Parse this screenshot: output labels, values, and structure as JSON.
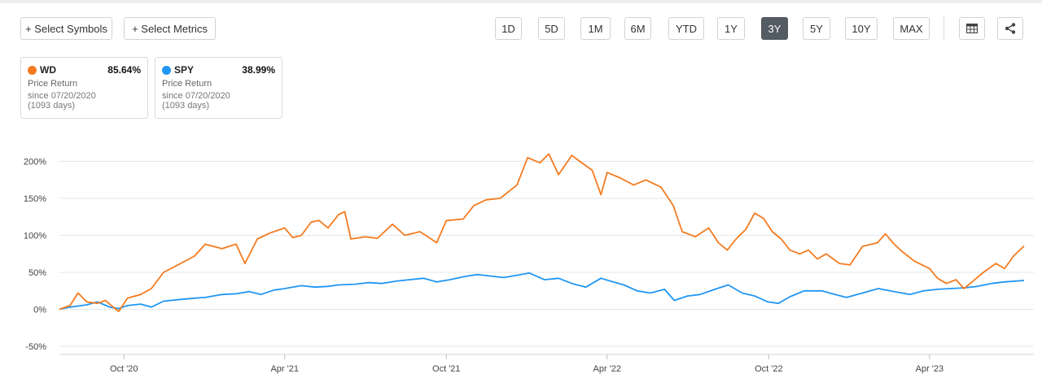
{
  "toolbar": {
    "select_symbols": "+ Select Symbols",
    "select_metrics": "+ Select Metrics",
    "ranges": [
      "1D",
      "5D",
      "1M",
      "6M",
      "YTD",
      "1Y",
      "3Y",
      "5Y",
      "10Y",
      "MAX"
    ],
    "active_range": "3Y",
    "table_icon": "table-icon",
    "share_icon": "share-icon"
  },
  "legend_cards": [
    {
      "symbol": "WD",
      "value": "85.64%",
      "metric": "Price Return",
      "since": "since 07/20/2020",
      "days": "(1093 days)",
      "color": "#f47b20"
    },
    {
      "symbol": "SPY",
      "value": "38.99%",
      "metric": "Price Return",
      "since": "since 07/20/2020",
      "days": "(1093 days)",
      "color": "#2196f3"
    }
  ],
  "chart_data": {
    "type": "line",
    "title": "",
    "xlabel": "",
    "ylabel": "",
    "x_range": [
      "2020-07-20",
      "2023-07-17"
    ],
    "ylim": [
      -50,
      225
    ],
    "y_ticks": [
      "200%",
      "150%",
      "100%",
      "50%",
      "0%",
      "-50%"
    ],
    "y_tick_values": [
      200,
      150,
      100,
      50,
      0,
      -50
    ],
    "x_ticks": [
      "Oct '20",
      "Apr '21",
      "Oct '21",
      "Apr '22",
      "Oct '22",
      "Apr '23"
    ],
    "x_tick_dates": [
      "2020-10-01",
      "2021-04-01",
      "2021-10-01",
      "2022-04-01",
      "2022-10-01",
      "2023-04-01"
    ],
    "grid": true,
    "series": [
      {
        "name": "WD",
        "color": "#f47b20",
        "points": [
          [
            "2020-07-20",
            0
          ],
          [
            "2020-08-01",
            5
          ],
          [
            "2020-08-10",
            22
          ],
          [
            "2020-08-20",
            10
          ],
          [
            "2020-09-01",
            8
          ],
          [
            "2020-09-10",
            12
          ],
          [
            "2020-09-18",
            4
          ],
          [
            "2020-09-25",
            -3
          ],
          [
            "2020-10-05",
            15
          ],
          [
            "2020-10-20",
            20
          ],
          [
            "2020-11-01",
            28
          ],
          [
            "2020-11-15",
            50
          ],
          [
            "2020-12-01",
            60
          ],
          [
            "2020-12-20",
            72
          ],
          [
            "2021-01-01",
            88
          ],
          [
            "2021-01-20",
            82
          ],
          [
            "2021-02-05",
            88
          ],
          [
            "2021-02-15",
            62
          ],
          [
            "2021-03-01",
            95
          ],
          [
            "2021-03-15",
            103
          ],
          [
            "2021-04-01",
            110
          ],
          [
            "2021-04-10",
            97
          ],
          [
            "2021-04-20",
            100
          ],
          [
            "2021-05-01",
            118
          ],
          [
            "2021-05-10",
            120
          ],
          [
            "2021-05-20",
            110
          ],
          [
            "2021-06-01",
            128
          ],
          [
            "2021-06-08",
            132
          ],
          [
            "2021-06-15",
            95
          ],
          [
            "2021-07-01",
            98
          ],
          [
            "2021-07-15",
            96
          ],
          [
            "2021-08-01",
            115
          ],
          [
            "2021-08-15",
            100
          ],
          [
            "2021-09-01",
            105
          ],
          [
            "2021-09-10",
            98
          ],
          [
            "2021-09-20",
            90
          ],
          [
            "2021-10-01",
            120
          ],
          [
            "2021-10-20",
            122
          ],
          [
            "2021-11-01",
            140
          ],
          [
            "2021-11-15",
            148
          ],
          [
            "2021-12-01",
            150
          ],
          [
            "2021-12-20",
            168
          ],
          [
            "2022-01-01",
            205
          ],
          [
            "2022-01-15",
            198
          ],
          [
            "2022-01-25",
            210
          ],
          [
            "2022-02-05",
            182
          ],
          [
            "2022-02-20",
            208
          ],
          [
            "2022-03-01",
            200
          ],
          [
            "2022-03-15",
            188
          ],
          [
            "2022-03-25",
            155
          ],
          [
            "2022-04-01",
            185
          ],
          [
            "2022-04-15",
            178
          ],
          [
            "2022-05-01",
            168
          ],
          [
            "2022-05-15",
            175
          ],
          [
            "2022-06-01",
            165
          ],
          [
            "2022-06-15",
            140
          ],
          [
            "2022-06-25",
            105
          ],
          [
            "2022-07-10",
            98
          ],
          [
            "2022-07-25",
            110
          ],
          [
            "2022-08-05",
            90
          ],
          [
            "2022-08-15",
            80
          ],
          [
            "2022-08-25",
            95
          ],
          [
            "2022-09-05",
            108
          ],
          [
            "2022-09-15",
            130
          ],
          [
            "2022-09-25",
            123
          ],
          [
            "2022-10-05",
            105
          ],
          [
            "2022-10-15",
            95
          ],
          [
            "2022-10-25",
            80
          ],
          [
            "2022-11-05",
            75
          ],
          [
            "2022-11-15",
            80
          ],
          [
            "2022-11-25",
            68
          ],
          [
            "2022-12-05",
            75
          ],
          [
            "2022-12-20",
            62
          ],
          [
            "2023-01-01",
            60
          ],
          [
            "2023-01-15",
            85
          ],
          [
            "2023-02-01",
            90
          ],
          [
            "2023-02-10",
            102
          ],
          [
            "2023-02-20",
            88
          ],
          [
            "2023-03-01",
            78
          ],
          [
            "2023-03-15",
            65
          ],
          [
            "2023-04-01",
            55
          ],
          [
            "2023-04-10",
            42
          ],
          [
            "2023-04-20",
            35
          ],
          [
            "2023-05-01",
            40
          ],
          [
            "2023-05-10",
            28
          ],
          [
            "2023-05-20",
            38
          ],
          [
            "2023-06-01",
            50
          ],
          [
            "2023-06-15",
            62
          ],
          [
            "2023-06-25",
            55
          ],
          [
            "2023-07-05",
            72
          ],
          [
            "2023-07-17",
            85.64
          ]
        ]
      },
      {
        "name": "SPY",
        "color": "#2196f3",
        "points": [
          [
            "2020-07-20",
            0
          ],
          [
            "2020-08-01",
            3
          ],
          [
            "2020-08-20",
            6
          ],
          [
            "2020-09-01",
            10
          ],
          [
            "2020-09-15",
            3
          ],
          [
            "2020-09-25",
            1
          ],
          [
            "2020-10-05",
            5
          ],
          [
            "2020-10-20",
            7
          ],
          [
            "2020-11-01",
            3
          ],
          [
            "2020-11-15",
            11
          ],
          [
            "2020-12-01",
            13
          ],
          [
            "2020-12-20",
            15
          ],
          [
            "2021-01-01",
            16
          ],
          [
            "2021-01-20",
            20
          ],
          [
            "2021-02-05",
            21
          ],
          [
            "2021-02-20",
            24
          ],
          [
            "2021-03-05",
            20
          ],
          [
            "2021-03-20",
            26
          ],
          [
            "2021-04-01",
            28
          ],
          [
            "2021-04-20",
            32
          ],
          [
            "2021-05-05",
            30
          ],
          [
            "2021-05-20",
            31
          ],
          [
            "2021-06-01",
            33
          ],
          [
            "2021-06-20",
            34
          ],
          [
            "2021-07-05",
            36
          ],
          [
            "2021-07-20",
            35
          ],
          [
            "2021-08-05",
            38
          ],
          [
            "2021-08-20",
            40
          ],
          [
            "2021-09-05",
            42
          ],
          [
            "2021-09-20",
            37
          ],
          [
            "2021-10-05",
            40
          ],
          [
            "2021-10-20",
            44
          ],
          [
            "2021-11-05",
            47
          ],
          [
            "2021-11-20",
            45
          ],
          [
            "2021-12-05",
            43
          ],
          [
            "2021-12-20",
            46
          ],
          [
            "2022-01-03",
            49
          ],
          [
            "2022-01-20",
            40
          ],
          [
            "2022-02-05",
            42
          ],
          [
            "2022-02-20",
            35
          ],
          [
            "2022-03-08",
            30
          ],
          [
            "2022-03-25",
            42
          ],
          [
            "2022-04-05",
            38
          ],
          [
            "2022-04-20",
            33
          ],
          [
            "2022-05-05",
            25
          ],
          [
            "2022-05-20",
            22
          ],
          [
            "2022-06-05",
            27
          ],
          [
            "2022-06-16",
            12
          ],
          [
            "2022-07-01",
            18
          ],
          [
            "2022-07-15",
            20
          ],
          [
            "2022-08-01",
            27
          ],
          [
            "2022-08-16",
            33
          ],
          [
            "2022-09-01",
            22
          ],
          [
            "2022-09-15",
            18
          ],
          [
            "2022-09-30",
            10
          ],
          [
            "2022-10-12",
            8
          ],
          [
            "2022-10-25",
            17
          ],
          [
            "2022-11-10",
            25
          ],
          [
            "2022-11-30",
            25
          ],
          [
            "2022-12-15",
            20
          ],
          [
            "2022-12-28",
            16
          ],
          [
            "2023-01-15",
            22
          ],
          [
            "2023-02-02",
            28
          ],
          [
            "2023-02-20",
            24
          ],
          [
            "2023-03-10",
            20
          ],
          [
            "2023-03-25",
            25
          ],
          [
            "2023-04-10",
            27
          ],
          [
            "2023-04-25",
            28
          ],
          [
            "2023-05-10",
            29
          ],
          [
            "2023-05-25",
            31
          ],
          [
            "2023-06-10",
            35
          ],
          [
            "2023-06-25",
            37
          ],
          [
            "2023-07-17",
            38.99
          ]
        ]
      }
    ]
  }
}
